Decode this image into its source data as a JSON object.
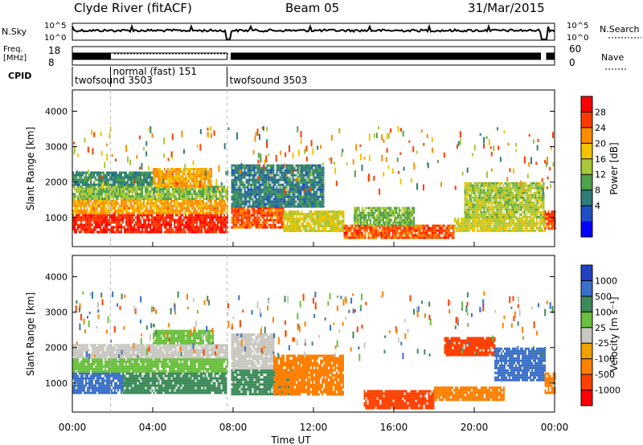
{
  "header": {
    "station": "Clyde River (fitACF)",
    "beam": "Beam 05",
    "date": "31/Mar/2015"
  },
  "strips": {
    "nsky_label": "N.Sky",
    "nsky_ticks": [
      "10^5",
      "10^0"
    ],
    "nsearch_label": "N.Search",
    "nsearch_ticks": [
      "10^5",
      "10^0"
    ],
    "freq_label_line1": "Freq.",
    "freq_label_line2": "[MHz]",
    "freq_ticks": [
      "18",
      "8"
    ],
    "nave_label": "Nave",
    "nave_ticks": [
      "60",
      "0"
    ],
    "cpid_label": "CPID",
    "cpid_segments": [
      {
        "start_h": 0.0,
        "end_h": 1.9,
        "text": "twofsound 3503"
      },
      {
        "start_h": 1.9,
        "end_h": 7.7,
        "text": "normal (fast)  151"
      },
      {
        "start_h": 7.7,
        "end_h": 24.0,
        "text": "twofsound 3503"
      }
    ]
  },
  "colorbars": {
    "power": {
      "label": "Power [dB]",
      "ticks": [
        "28",
        "24",
        "20",
        "16",
        "12",
        "8",
        "4"
      ]
    },
    "velocity": {
      "label": "Velocity [m s⁻¹]",
      "ticks": [
        "1000",
        "500",
        "100",
        "25",
        "-25",
        "-100",
        "-500",
        "-1000"
      ]
    }
  },
  "chart_data": [
    {
      "type": "heatmap",
      "quantity": "Power",
      "ylabel": "Slant Range [km]",
      "xlabel": "Time UT",
      "xlim_hours": [
        0,
        24
      ],
      "ylim_km": [
        180,
        4600
      ],
      "yticks_km": [
        "1000",
        "2000",
        "3000",
        "4000"
      ],
      "xticks": [
        "00:00",
        "04:00",
        "08:00",
        "12:00",
        "16:00",
        "20:00",
        "00:00"
      ],
      "xtick_hours": [
        0,
        4,
        8,
        12,
        16,
        20,
        24
      ],
      "clim_db": [
        0,
        32
      ],
      "palette": [
        "#0000ff",
        "#1f4fc4",
        "#2e7d7a",
        "#4ea24a",
        "#a8c83a",
        "#f2c500",
        "#ff8c00",
        "#ff3a00",
        "#ff0000"
      ],
      "regions": [
        {
          "t0": 0.0,
          "t1": 7.7,
          "r0": 600,
          "r1": 1100,
          "value": 28
        },
        {
          "t0": 0.0,
          "t1": 7.7,
          "r0": 1100,
          "r1": 1500,
          "value": 22
        },
        {
          "t0": 0.0,
          "t1": 7.7,
          "r0": 1500,
          "r1": 1900,
          "value": 15
        },
        {
          "t0": 4.0,
          "t1": 6.9,
          "r0": 1900,
          "r1": 2400,
          "value": 22
        },
        {
          "t0": 0.0,
          "t1": 4.0,
          "r0": 1900,
          "r1": 2300,
          "value": 10
        },
        {
          "t0": 7.9,
          "t1": 10.5,
          "r0": 700,
          "r1": 1300,
          "value": 26
        },
        {
          "t0": 7.9,
          "t1": 12.5,
          "r0": 1300,
          "r1": 2500,
          "value": 9
        },
        {
          "t0": 10.5,
          "t1": 13.5,
          "r0": 600,
          "r1": 1200,
          "value": 18
        },
        {
          "t0": 13.5,
          "t1": 19.0,
          "r0": 400,
          "r1": 800,
          "value": 26
        },
        {
          "t0": 14.0,
          "t1": 17.0,
          "r0": 800,
          "r1": 1300,
          "value": 14
        },
        {
          "t0": 19.0,
          "t1": 23.5,
          "r0": 600,
          "r1": 1000,
          "value": 18
        },
        {
          "t0": 19.5,
          "t1": 23.5,
          "r0": 1000,
          "r1": 2000,
          "value": 16
        },
        {
          "t0": 23.5,
          "t1": 24.0,
          "r0": 700,
          "r1": 1200,
          "value": 26
        }
      ]
    },
    {
      "type": "heatmap",
      "quantity": "Velocity",
      "ylabel": "Slant Range [km]",
      "xlabel": "Time UT",
      "xlim_hours": [
        0,
        24
      ],
      "ylim_km": [
        180,
        4600
      ],
      "yticks_km": [
        "1000",
        "2000",
        "3000",
        "4000"
      ],
      "xticks": [
        "00:00",
        "04:00",
        "08:00",
        "12:00",
        "16:00",
        "20:00",
        "00:00"
      ],
      "xtick_hours": [
        0,
        4,
        8,
        12,
        16,
        20,
        24
      ],
      "levels": [
        1000,
        500,
        100,
        25,
        -25,
        -100,
        -500,
        -1000
      ],
      "palette": [
        "#2040c0",
        "#3a70c8",
        "#3d8a5a",
        "#6cc040",
        "#c8c8c0",
        "#f0a000",
        "#ff7f00",
        "#ff4000",
        "#ff0000"
      ],
      "regions": [
        {
          "t0": 0.0,
          "t1": 2.5,
          "r0": 700,
          "r1": 1300,
          "value": 700
        },
        {
          "t0": 2.5,
          "t1": 7.7,
          "r0": 700,
          "r1": 1300,
          "value": 200
        },
        {
          "t0": 0.0,
          "t1": 7.7,
          "r0": 1300,
          "r1": 1700,
          "value": 60
        },
        {
          "t0": 0.0,
          "t1": 7.7,
          "r0": 1700,
          "r1": 2100,
          "value": 0
        },
        {
          "t0": 4.0,
          "t1": 7.0,
          "r0": 2100,
          "r1": 2500,
          "value": 60
        },
        {
          "t0": 7.9,
          "t1": 11.0,
          "r0": 700,
          "r1": 1400,
          "value": 200
        },
        {
          "t0": 7.9,
          "t1": 10.0,
          "r0": 1400,
          "r1": 2400,
          "value": 0
        },
        {
          "t0": 10.0,
          "t1": 13.5,
          "r0": 700,
          "r1": 1800,
          "value": -200
        },
        {
          "t0": 14.5,
          "t1": 18.0,
          "r0": 300,
          "r1": 800,
          "value": -600
        },
        {
          "t0": 18.0,
          "t1": 21.5,
          "r0": 500,
          "r1": 900,
          "value": -200
        },
        {
          "t0": 18.5,
          "t1": 21.0,
          "r0": 1800,
          "r1": 2300,
          "value": -700
        },
        {
          "t0": 21.0,
          "t1": 23.5,
          "r0": 1100,
          "r1": 2000,
          "value": 600
        },
        {
          "t0": 23.5,
          "t1": 24.0,
          "r0": 700,
          "r1": 1300,
          "value": -300
        }
      ]
    }
  ]
}
